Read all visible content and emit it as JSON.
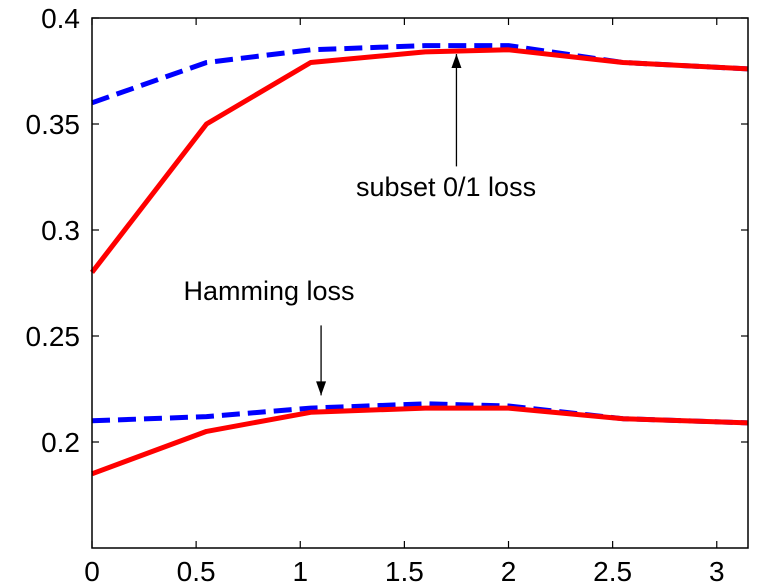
{
  "chart_data": {
    "type": "line",
    "xlim": [
      0,
      3.15
    ],
    "ylim": [
      0.15,
      0.4
    ],
    "xticks": [
      0,
      0.5,
      1,
      1.5,
      2,
      2.5,
      3
    ],
    "xtick_labels": [
      "0",
      "0.5",
      "1",
      "1.5",
      "2",
      "2.5",
      "3"
    ],
    "yticks": [
      0.2,
      0.25,
      0.3,
      0.35,
      0.4
    ],
    "ytick_labels": [
      "0.2",
      "0.25",
      "0.3",
      "0.35",
      "0.4"
    ],
    "grid": false,
    "series": [
      {
        "style": "dashed",
        "color": "#0000ff",
        "x": [
          0,
          0.55,
          1.05,
          1.6,
          2.0,
          2.55,
          3.15
        ],
        "y": [
          0.36,
          0.379,
          0.385,
          0.387,
          0.387,
          0.379,
          0.376
        ]
      },
      {
        "style": "solid",
        "color": "#ff0000",
        "x": [
          0,
          0.55,
          1.05,
          1.6,
          2.0,
          2.55,
          3.15
        ],
        "y": [
          0.28,
          0.35,
          0.379,
          0.384,
          0.385,
          0.379,
          0.376
        ]
      },
      {
        "style": "dashed",
        "color": "#0000ff",
        "x": [
          0,
          0.55,
          1.05,
          1.6,
          2.0,
          2.55,
          3.15
        ],
        "y": [
          0.21,
          0.212,
          0.216,
          0.218,
          0.217,
          0.211,
          0.209
        ]
      },
      {
        "style": "solid",
        "color": "#ff0000",
        "x": [
          0,
          0.55,
          1.05,
          1.6,
          2.0,
          2.55,
          3.15
        ],
        "y": [
          0.185,
          0.205,
          0.214,
          0.216,
          0.216,
          0.211,
          0.209
        ]
      }
    ],
    "annotations": [
      {
        "text": "subset 0/1 loss",
        "text_x": 1.7,
        "text_y": 0.316,
        "arrow_from": [
          1.75,
          0.33
        ],
        "arrow_to": [
          1.75,
          0.383
        ]
      },
      {
        "text": "Hamming loss",
        "text_x": 0.85,
        "text_y": 0.267,
        "arrow_from": [
          1.1,
          0.255
        ],
        "arrow_to": [
          1.1,
          0.222
        ]
      }
    ]
  }
}
